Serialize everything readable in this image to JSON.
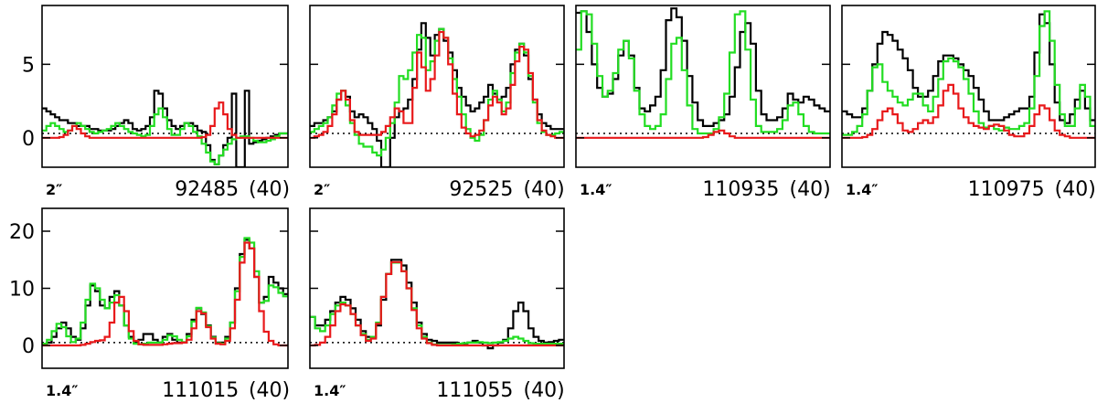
{
  "figure": {
    "colors": {
      "observed": "#000000",
      "model_total": "#22dd22",
      "model_component": "#e8191b",
      "baseline": "#000000"
    }
  },
  "chart_data": [
    {
      "type": "line",
      "row": 1,
      "col": 1,
      "beam_label": "2″",
      "freq_label": "92485",
      "channels_label": "(40)",
      "ylim": [
        -2,
        9
      ],
      "yticks": [
        0,
        5
      ],
      "show_ytick_labels": true,
      "baseline_y": 0.3,
      "series": [
        {
          "role": "observed",
          "values": [
            2.0,
            1.8,
            1.6,
            1.4,
            1.2,
            1.2,
            1.0,
            1.0,
            0.8,
            0.8,
            0.8,
            0.6,
            0.6,
            0.5,
            0.5,
            0.5,
            0.6,
            0.8,
            1.0,
            1.2,
            1.0,
            0.6,
            0.5,
            0.6,
            0.8,
            1.4,
            3.2,
            3.0,
            2.0,
            1.2,
            0.8,
            0.6,
            0.8,
            1.0,
            1.0,
            0.8,
            0.5,
            0.4,
            -0.5,
            -1.5,
            -1.8,
            -1.2,
            -0.5,
            0.0,
            3.0,
            -2.0,
            -2.0,
            3.2,
            -0.4,
            -0.3,
            -0.2,
            -0.1,
            0.0,
            0.1,
            0.2,
            0.3,
            0.3
          ]
        },
        {
          "role": "model_total",
          "values": [
            0.5,
            0.8,
            1.0,
            0.8,
            0.6,
            0.4,
            0.5,
            0.8,
            1.0,
            0.8,
            0.6,
            0.4,
            0.3,
            0.4,
            0.5,
            0.6,
            0.8,
            1.0,
            0.8,
            0.6,
            0.4,
            0.3,
            0.2,
            0.1,
            0.2,
            0.8,
            1.6,
            2.0,
            1.4,
            0.6,
            0.2,
            0.2,
            0.6,
            1.0,
            0.8,
            0.4,
            0.1,
            -0.4,
            -1.0,
            -1.6,
            -1.8,
            -1.2,
            -0.8,
            -0.4,
            -0.1,
            0.0,
            0.1,
            0.1,
            0.0,
            -0.2,
            -0.3,
            -0.3,
            -0.2,
            -0.1,
            0.1,
            0.3,
            0.3
          ]
        },
        {
          "role": "model_component",
          "values": [
            0.0,
            0.0,
            0.0,
            0.0,
            0.05,
            0.2,
            0.5,
            0.8,
            0.6,
            0.3,
            0.1,
            0.0,
            0.0,
            0.0,
            0.0,
            0.0,
            0.0,
            0.0,
            0.0,
            0.0,
            0.0,
            0.0,
            0.0,
            0.0,
            0.0,
            0.0,
            0.0,
            0.0,
            0.0,
            0.0,
            0.0,
            0.0,
            0.0,
            0.0,
            0.0,
            0.0,
            0.0,
            0.05,
            0.2,
            0.8,
            2.0,
            2.4,
            1.6,
            0.6,
            0.2,
            0.0,
            0.0,
            0.0,
            0.0,
            0.0,
            0.0,
            0.0,
            0.0,
            0.0,
            0.0,
            0.0,
            0.0
          ]
        }
      ]
    },
    {
      "type": "line",
      "row": 1,
      "col": 2,
      "beam_label": "2″",
      "freq_label": "92525",
      "channels_label": "(40)",
      "ylim": [
        -2,
        9
      ],
      "yticks": [
        0,
        5
      ],
      "show_ytick_labels": false,
      "baseline_y": 0.3,
      "series": [
        {
          "role": "observed",
          "values": [
            0.8,
            1.0,
            1.0,
            1.2,
            1.4,
            1.8,
            2.6,
            3.2,
            2.8,
            1.8,
            1.4,
            1.6,
            1.4,
            1.0,
            0.6,
            -0.2,
            -2.0,
            -2.0,
            0.0,
            1.4,
            1.8,
            2.0,
            2.6,
            4.0,
            6.0,
            7.8,
            6.8,
            5.6,
            7.0,
            7.4,
            6.6,
            5.8,
            4.6,
            3.4,
            2.8,
            2.2,
            1.8,
            2.0,
            2.4,
            2.8,
            3.6,
            3.0,
            2.6,
            2.8,
            3.4,
            5.0,
            6.0,
            6.4,
            5.6,
            4.0,
            2.6,
            1.6,
            1.0,
            0.8,
            0.6,
            0.6,
            0.6
          ]
        },
        {
          "role": "model_total",
          "values": [
            0.4,
            0.6,
            0.8,
            1.0,
            1.4,
            2.2,
            3.0,
            3.2,
            2.2,
            1.0,
            0.2,
            -0.4,
            -0.6,
            -0.6,
            -1.0,
            -1.2,
            -0.8,
            0.0,
            1.0,
            2.4,
            4.2,
            4.0,
            4.6,
            5.8,
            7.0,
            6.8,
            4.6,
            5.2,
            6.6,
            7.4,
            6.8,
            5.4,
            4.0,
            2.8,
            1.6,
            0.6,
            0.0,
            -0.2,
            0.2,
            1.2,
            2.6,
            3.2,
            2.6,
            1.8,
            2.4,
            4.4,
            5.8,
            6.4,
            5.8,
            4.2,
            2.4,
            1.0,
            0.4,
            0.2,
            0.2,
            0.3,
            0.4
          ]
        },
        {
          "role": "model_component",
          "values": [
            0.0,
            0.1,
            0.2,
            0.4,
            0.8,
            1.6,
            2.6,
            3.2,
            2.6,
            1.2,
            0.4,
            0.2,
            0.2,
            0.2,
            0.2,
            0.2,
            0.4,
            0.8,
            1.4,
            2.0,
            1.8,
            1.0,
            1.0,
            3.4,
            5.8,
            4.8,
            3.2,
            4.0,
            5.6,
            7.2,
            6.8,
            5.0,
            3.0,
            1.6,
            0.7,
            0.3,
            0.1,
            0.2,
            0.5,
            1.2,
            2.2,
            2.8,
            2.4,
            1.6,
            2.0,
            3.6,
            5.2,
            6.2,
            6.0,
            4.4,
            2.6,
            1.2,
            0.5,
            0.2,
            0.1,
            0.0,
            0.0
          ]
        }
      ]
    },
    {
      "type": "line",
      "row": 1,
      "col": 3,
      "beam_label": "1.4″",
      "freq_label": "110935",
      "channels_label": "(40)",
      "ylim": [
        -2,
        9
      ],
      "yticks": [
        0,
        5
      ],
      "show_ytick_labels": false,
      "baseline_y": 0.3,
      "series": [
        {
          "role": "observed",
          "values": [
            8.5,
            8.6,
            7.2,
            5.0,
            3.4,
            2.8,
            3.0,
            4.0,
            5.6,
            6.6,
            5.6,
            3.4,
            2.0,
            1.8,
            2.2,
            2.8,
            4.6,
            8.0,
            8.8,
            8.2,
            6.6,
            4.2,
            2.4,
            1.2,
            0.8,
            0.8,
            1.0,
            1.2,
            1.6,
            2.8,
            4.8,
            7.2,
            7.8,
            6.4,
            3.2,
            1.6,
            1.2,
            1.2,
            1.4,
            2.0,
            3.0,
            2.6,
            2.4,
            2.8,
            2.6,
            2.2,
            2.0,
            1.8
          ]
        },
        {
          "role": "model_total",
          "values": [
            6.0,
            8.6,
            8.4,
            6.4,
            4.2,
            2.8,
            3.2,
            4.4,
            6.0,
            6.6,
            5.4,
            3.2,
            1.6,
            0.8,
            0.6,
            0.8,
            1.6,
            4.0,
            6.4,
            6.8,
            4.6,
            2.2,
            0.6,
            0.3,
            0.3,
            0.3,
            0.6,
            1.4,
            3.0,
            5.8,
            8.4,
            8.6,
            6.0,
            2.6,
            0.8,
            0.4,
            0.4,
            0.4,
            0.6,
            1.2,
            2.2,
            2.4,
            1.6,
            0.8,
            0.4,
            0.3,
            0.3,
            0.3
          ]
        },
        {
          "role": "model_component",
          "values": [
            0.0,
            0.0,
            0.0,
            0.0,
            0.0,
            0.0,
            0.0,
            0.0,
            0.0,
            0.0,
            0.0,
            0.0,
            0.0,
            0.0,
            0.0,
            0.0,
            0.0,
            0.0,
            0.0,
            0.0,
            0.0,
            0.0,
            0.0,
            0.0,
            0.05,
            0.2,
            0.4,
            0.5,
            0.3,
            0.1,
            0.0,
            0.0,
            0.0,
            0.0,
            0.0,
            0.0,
            0.0,
            0.0,
            0.0,
            0.0,
            0.0,
            0.0,
            0.0,
            0.0,
            0.0,
            0.0,
            0.0,
            0.0
          ]
        }
      ]
    },
    {
      "type": "line",
      "row": 1,
      "col": 4,
      "beam_label": "1.4″",
      "freq_label": "110975",
      "channels_label": "(40)",
      "ylim": [
        -2,
        9
      ],
      "yticks": [
        0,
        5
      ],
      "show_ytick_labels": false,
      "baseline_y": 0.3,
      "series": [
        {
          "role": "observed",
          "values": [
            1.8,
            1.6,
            1.4,
            1.4,
            2.0,
            3.2,
            5.0,
            6.4,
            7.2,
            7.0,
            6.6,
            6.0,
            5.4,
            4.6,
            3.4,
            2.8,
            2.8,
            3.2,
            4.2,
            5.2,
            5.6,
            5.6,
            5.4,
            5.0,
            4.6,
            4.2,
            3.4,
            2.6,
            1.8,
            1.2,
            1.2,
            1.2,
            1.4,
            1.6,
            1.8,
            2.0,
            2.0,
            2.8,
            5.8,
            8.4,
            7.8,
            5.0,
            2.4,
            1.2,
            1.0,
            1.6,
            2.6,
            3.2,
            2.0,
            1.2
          ]
        },
        {
          "role": "model_total",
          "values": [
            0.2,
            0.2,
            0.4,
            0.8,
            1.6,
            3.2,
            4.8,
            5.0,
            3.8,
            3.2,
            2.8,
            2.4,
            2.2,
            2.6,
            3.0,
            3.0,
            2.2,
            1.8,
            2.8,
            4.0,
            5.2,
            5.4,
            5.2,
            4.8,
            4.0,
            3.0,
            1.8,
            1.0,
            0.7,
            0.8,
            0.6,
            0.5,
            0.7,
            0.6,
            0.6,
            0.8,
            1.0,
            2.0,
            4.2,
            7.6,
            8.6,
            6.6,
            3.6,
            1.6,
            0.8,
            0.8,
            2.0,
            3.6,
            2.8,
            0.8
          ]
        },
        {
          "role": "model_component",
          "values": [
            0.0,
            0.0,
            0.0,
            0.0,
            0.05,
            0.2,
            0.6,
            1.2,
            1.8,
            2.0,
            1.6,
            1.0,
            0.5,
            0.4,
            0.6,
            1.0,
            1.2,
            1.0,
            1.4,
            2.2,
            3.2,
            3.6,
            3.0,
            2.0,
            1.4,
            1.0,
            0.8,
            0.7,
            0.6,
            0.8,
            0.9,
            0.8,
            0.5,
            0.2,
            0.1,
            0.1,
            0.3,
            0.8,
            1.6,
            2.2,
            2.0,
            1.2,
            0.5,
            0.2,
            0.1,
            0.0,
            0.0,
            0.0,
            0.0,
            0.0
          ]
        }
      ]
    },
    {
      "type": "line",
      "row": 2,
      "col": 1,
      "beam_label": "1.4″",
      "freq_label": "111015",
      "channels_label": "(40)",
      "ylim": [
        -4,
        24
      ],
      "yticks": [
        0,
        10,
        20
      ],
      "show_ytick_labels": true,
      "baseline_y": 0.5,
      "series": [
        {
          "role": "observed",
          "values": [
            0.2,
            0.5,
            1.5,
            3.0,
            4.0,
            3.0,
            1.5,
            1.0,
            3.0,
            7.0,
            10.5,
            9.5,
            7.0,
            6.5,
            8.5,
            9.5,
            7.0,
            3.5,
            1.5,
            0.5,
            1.0,
            2.0,
            2.0,
            1.0,
            0.5,
            1.5,
            2.0,
            1.0,
            0.5,
            0.5,
            2.0,
            4.5,
            6.5,
            5.5,
            3.5,
            1.5,
            0.5,
            0.5,
            1.5,
            4.0,
            10.0,
            16.0,
            18.5,
            17.0,
            12.0,
            7.5,
            8.5,
            12.0,
            11.0,
            10.0,
            9.0
          ]
        },
        {
          "role": "model_total",
          "values": [
            0.3,
            1.0,
            2.5,
            3.8,
            3.2,
            1.6,
            0.6,
            1.2,
            4.0,
            8.0,
            10.8,
            10.0,
            8.0,
            6.5,
            7.5,
            8.8,
            7.0,
            3.5,
            1.2,
            0.3,
            0.2,
            0.3,
            0.5,
            0.5,
            0.5,
            1.0,
            1.8,
            1.6,
            1.0,
            0.6,
            1.6,
            4.2,
            6.6,
            5.8,
            3.4,
            1.4,
            0.4,
            0.3,
            1.2,
            4.0,
            9.5,
            15.5,
            18.8,
            18.0,
            13.0,
            7.5,
            7.8,
            10.5,
            10.2,
            9.2,
            8.6
          ]
        },
        {
          "role": "model_component",
          "values": [
            0.0,
            0.0,
            0.0,
            0.0,
            0.0,
            0.0,
            0.0,
            0.0,
            0.1,
            0.3,
            0.6,
            0.8,
            0.9,
            1.5,
            4.0,
            7.5,
            8.5,
            6.0,
            2.5,
            0.8,
            0.2,
            0.1,
            0.1,
            0.1,
            0.1,
            0.2,
            0.3,
            0.4,
            0.4,
            0.5,
            1.0,
            3.0,
            6.0,
            5.6,
            3.2,
            1.2,
            0.3,
            0.2,
            0.8,
            3.0,
            8.0,
            14.5,
            18.0,
            17.0,
            12.0,
            6.0,
            2.4,
            0.8,
            0.2,
            0.0,
            0.0
          ]
        }
      ]
    },
    {
      "type": "line",
      "row": 2,
      "col": 2,
      "beam_label": "1.4″",
      "freq_label": "111055",
      "channels_label": "(40)",
      "ylim": [
        -4,
        24
      ],
      "yticks": [
        0,
        10,
        20
      ],
      "show_ytick_labels": false,
      "baseline_y": 0.5,
      "series": [
        {
          "role": "observed",
          "values": [
            5.0,
            3.5,
            3.5,
            4.5,
            6.0,
            7.5,
            8.5,
            8.0,
            6.5,
            4.5,
            2.5,
            1.5,
            1.5,
            3.5,
            8.0,
            12.5,
            15.0,
            15.0,
            14.0,
            11.0,
            7.5,
            4.0,
            2.0,
            1.0,
            0.8,
            0.5,
            0.5,
            0.5,
            0.5,
            0.3,
            0.3,
            0.5,
            0.8,
            0.5,
            0.0,
            -0.5,
            0.0,
            0.5,
            1.0,
            3.0,
            6.0,
            7.5,
            6.0,
            3.0,
            1.5,
            0.8,
            0.5,
            0.6,
            0.8,
            1.0
          ]
        },
        {
          "role": "model_total",
          "values": [
            5.0,
            3.0,
            2.5,
            3.5,
            5.5,
            7.0,
            7.5,
            7.0,
            5.5,
            3.5,
            2.0,
            1.0,
            1.5,
            4.0,
            8.5,
            12.5,
            14.5,
            14.5,
            13.0,
            10.0,
            6.5,
            3.5,
            1.5,
            0.5,
            0.2,
            0.1,
            0.1,
            0.1,
            0.2,
            0.3,
            0.4,
            0.5,
            0.5,
            0.6,
            0.5,
            0.4,
            0.5,
            0.6,
            0.8,
            1.2,
            1.5,
            1.2,
            0.8,
            0.4,
            0.3,
            0.3,
            0.3,
            0.3,
            0.3,
            0.3
          ]
        },
        {
          "role": "model_component",
          "values": [
            0.0,
            0.1,
            0.5,
            1.5,
            3.5,
            6.0,
            7.2,
            7.0,
            5.5,
            3.5,
            1.8,
            0.8,
            1.2,
            3.8,
            8.5,
            12.5,
            14.6,
            14.6,
            13.0,
            10.0,
            6.2,
            3.0,
            1.2,
            0.4,
            0.1,
            0.0,
            0.0,
            0.0,
            0.0,
            0.0,
            0.0,
            0.0,
            0.0,
            0.0,
            0.0,
            0.0,
            0.0,
            0.0,
            0.0,
            0.0,
            0.0,
            0.0,
            0.0,
            0.0,
            0.0,
            0.0,
            0.0,
            0.0,
            0.0,
            0.0
          ]
        }
      ]
    }
  ]
}
